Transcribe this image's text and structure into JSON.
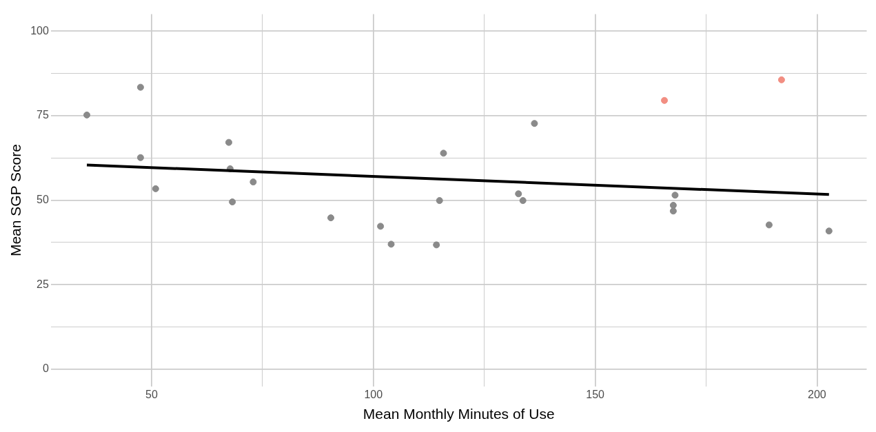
{
  "chart_data": {
    "type": "scatter",
    "xlabel": "Mean Monthly Minutes of Use",
    "ylabel": "Mean SGP Score",
    "xlim": [
      27.3,
      211.2
    ],
    "ylim": [
      -5,
      105
    ],
    "xticks": [
      50,
      {
        "value": 75,
        "label": null
      },
      100,
      {
        "value": 125,
        "label": null
      },
      150,
      {
        "value": 175,
        "label": null
      },
      200
    ],
    "yticks": [
      0,
      {
        "value": 12.5,
        "label": null
      },
      25,
      {
        "value": 37.5,
        "label": null
      },
      50,
      {
        "value": 62.5,
        "label": null
      },
      75,
      {
        "value": 87.5,
        "label": null
      },
      100
    ],
    "grid": true,
    "marker": "circle",
    "series": [
      {
        "type": "scatter",
        "color": "#8a8a8a",
        "x": [
          35.4,
          47.5,
          47.5,
          50.9,
          67.4,
          67.7,
          68.2,
          72.9,
          90.4,
          101.6,
          104.0,
          114.2,
          114.9,
          115.8,
          132.7,
          133.7,
          136.3,
          168.0,
          167.6,
          167.6,
          189.2,
          202.7
        ],
        "values": [
          75.2,
          83.4,
          62.6,
          53.4,
          67.1,
          59.3,
          49.5,
          55.4,
          44.8,
          42.3,
          37.0,
          36.8,
          49.9,
          63.9,
          51.9,
          49.9,
          72.7,
          51.5,
          48.5,
          46.8,
          42.7,
          40.9
        ]
      },
      {
        "type": "scatter",
        "color": "#f28e82",
        "x": [
          165.6,
          192.0
        ],
        "values": [
          79.5,
          85.6
        ]
      },
      {
        "type": "line",
        "marker": "none",
        "color": "#000000",
        "x": [
          35.4,
          202.7
        ],
        "values": [
          60.4,
          51.7
        ]
      }
    ]
  }
}
